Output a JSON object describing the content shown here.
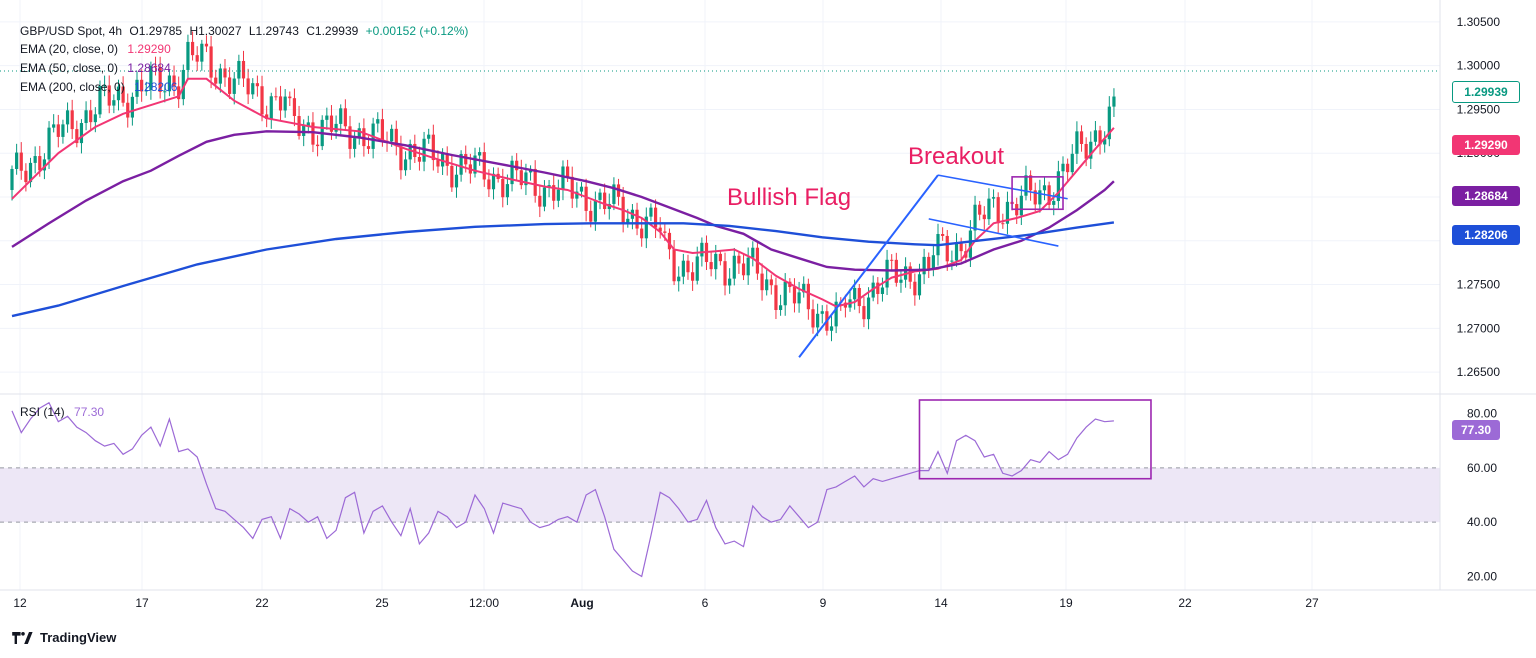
{
  "header": {
    "symbol": "GBP/USD Spot, 4h",
    "ohlc": {
      "open": "O1.29785",
      "high": "H1.30027",
      "low": "L1.29743",
      "close": "C1.29939",
      "change": "+0.00152 (+0.12%)"
    }
  },
  "legends": [
    {
      "label": "EMA (20, close, 0)",
      "value": "1.29290",
      "color": "#f23674"
    },
    {
      "label": "EMA (50, close, 0)",
      "value": "1.28684",
      "color": "#7b1fa2"
    },
    {
      "label": "EMA (200, close, 0)",
      "value": "1.28206",
      "color": "#1e4fd8"
    }
  ],
  "rsi_legend": {
    "label": "RSI (14)",
    "value": "77.30",
    "color": "#9c6ad6"
  },
  "price_tags": [
    {
      "value": "1.29939",
      "bg": "#ffffff",
      "fg": "#089981",
      "border": "#089981"
    },
    {
      "value": "1.29290",
      "bg": "#f23674",
      "fg": "#ffffff"
    },
    {
      "value": "1.28684",
      "bg": "#7b1fa2",
      "fg": "#ffffff"
    },
    {
      "value": "1.28206",
      "bg": "#1e4fd8",
      "fg": "#ffffff"
    }
  ],
  "rsi_tag": {
    "value": "77.30",
    "bg": "#9c6ad6"
  },
  "annotations": {
    "breakout": "Breakout",
    "flag": "Bullish Flag"
  },
  "footer": {
    "brand": "TradingView"
  },
  "colors": {
    "up": "#089981",
    "down": "#f23645",
    "grid": "#f0f3fa",
    "rsi_band": "#ede7f6"
  },
  "chart_data": {
    "type": "candlestick",
    "price_axis": {
      "ticks": [
        "1.30500",
        "1.30000",
        "1.29500",
        "1.29000",
        "1.28500",
        "1.28000",
        "1.27500",
        "1.27000",
        "1.26500"
      ],
      "ylim": [
        1.2625,
        1.3075
      ]
    },
    "rsi_axis": {
      "ticks": [
        "80.00",
        "60.00",
        "40.00",
        "20.00"
      ],
      "ylim": [
        15,
        85
      ],
      "band": [
        40,
        60
      ]
    },
    "x_ticks": [
      "12",
      "17",
      "22",
      "25",
      "12:00",
      "Aug",
      "6",
      "9",
      "14",
      "19",
      "22",
      "27"
    ],
    "series": [
      {
        "name": "EMA (20, close, 0)",
        "color": "#f23674",
        "points": [
          [
            0,
            1.2848
          ],
          [
            10,
            1.29
          ],
          [
            18,
            1.293
          ],
          [
            24,
            1.2945
          ],
          [
            30,
            1.2955
          ],
          [
            36,
            1.2965
          ],
          [
            38,
            1.2985
          ],
          [
            42,
            1.2985
          ],
          [
            48,
            1.296
          ],
          [
            55,
            1.294
          ],
          [
            65,
            1.293
          ],
          [
            75,
            1.2925
          ],
          [
            80,
            1.2915
          ],
          [
            85,
            1.2905
          ],
          [
            92,
            1.2893
          ],
          [
            100,
            1.288
          ],
          [
            108,
            1.287
          ],
          [
            115,
            1.2862
          ],
          [
            120,
            1.2858
          ],
          [
            124,
            1.285
          ],
          [
            128,
            1.2842
          ],
          [
            132,
            1.2835
          ],
          [
            136,
            1.2826
          ],
          [
            140,
            1.281
          ],
          [
            143,
            1.279
          ],
          [
            147,
            1.2786
          ],
          [
            152,
            1.2788
          ],
          [
            156,
            1.279
          ],
          [
            160,
            1.278
          ],
          [
            165,
            1.276
          ],
          [
            170,
            1.2745
          ],
          [
            175,
            1.2733
          ],
          [
            178,
            1.2725
          ],
          [
            182,
            1.273
          ],
          [
            186,
            1.2745
          ],
          [
            190,
            1.2758
          ],
          [
            195,
            1.2765
          ],
          [
            200,
            1.2768
          ],
          [
            205,
            1.2778
          ],
          [
            208,
            1.28
          ],
          [
            212,
            1.282
          ],
          [
            217,
            1.2826
          ],
          [
            222,
            1.2834
          ],
          [
            226,
            1.2855
          ],
          [
            230,
            1.288
          ],
          [
            234,
            1.2905
          ],
          [
            238,
            1.2929
          ]
        ]
      },
      {
        "name": "EMA (50, close, 0)",
        "color": "#7b1fa2",
        "points": [
          [
            0,
            1.2793
          ],
          [
            8,
            1.282
          ],
          [
            16,
            1.2846
          ],
          [
            24,
            1.2868
          ],
          [
            30,
            1.288
          ],
          [
            36,
            1.2897
          ],
          [
            42,
            1.2913
          ],
          [
            48,
            1.2921
          ],
          [
            55,
            1.2925
          ],
          [
            65,
            1.2924
          ],
          [
            75,
            1.2918
          ],
          [
            85,
            1.2909
          ],
          [
            95,
            1.2898
          ],
          [
            105,
            1.2888
          ],
          [
            115,
            1.2878
          ],
          [
            124,
            1.2868
          ],
          [
            130,
            1.286
          ],
          [
            136,
            1.285
          ],
          [
            142,
            1.2838
          ],
          [
            148,
            1.2826
          ],
          [
            152,
            1.2817
          ],
          [
            158,
            1.2808
          ],
          [
            164,
            1.279
          ],
          [
            170,
            1.278
          ],
          [
            176,
            1.277
          ],
          [
            182,
            1.2767
          ],
          [
            190,
            1.2766
          ],
          [
            198,
            1.2767
          ],
          [
            205,
            1.2774
          ],
          [
            212,
            1.279
          ],
          [
            218,
            1.28
          ],
          [
            224,
            1.2815
          ],
          [
            230,
            1.2835
          ],
          [
            236,
            1.2858
          ],
          [
            238,
            1.2868
          ]
        ]
      },
      {
        "name": "EMA (200, close, 0)",
        "color": "#1e4fd8",
        "points": [
          [
            0,
            1.2714
          ],
          [
            10,
            1.2726
          ],
          [
            25,
            1.275
          ],
          [
            40,
            1.2773
          ],
          [
            55,
            1.279
          ],
          [
            70,
            1.2802
          ],
          [
            85,
            1.281
          ],
          [
            100,
            1.2816
          ],
          [
            115,
            1.2819
          ],
          [
            125,
            1.282
          ],
          [
            135,
            1.282
          ],
          [
            145,
            1.282
          ],
          [
            155,
            1.2817
          ],
          [
            165,
            1.2811
          ],
          [
            175,
            1.2804
          ],
          [
            185,
            1.2799
          ],
          [
            195,
            1.2796
          ],
          [
            200,
            1.2795
          ],
          [
            210,
            1.2801
          ],
          [
            220,
            1.2807
          ],
          [
            230,
            1.2815
          ],
          [
            238,
            1.2821
          ]
        ]
      }
    ],
    "rsi": {
      "name": "RSI (14)",
      "color": "#9c6ad6",
      "values": [
        [
          0,
          81
        ],
        [
          2,
          73
        ],
        [
          4,
          78
        ],
        [
          6,
          82
        ],
        [
          8,
          84
        ],
        [
          10,
          77
        ],
        [
          12,
          79
        ],
        [
          14,
          75
        ],
        [
          16,
          73
        ],
        [
          18,
          70
        ],
        [
          20,
          68
        ],
        [
          22,
          69
        ],
        [
          24,
          65
        ],
        [
          26,
          67
        ],
        [
          28,
          72
        ],
        [
          30,
          75
        ],
        [
          32,
          68
        ],
        [
          34,
          78
        ],
        [
          36,
          66
        ],
        [
          38,
          67
        ],
        [
          40,
          64
        ],
        [
          42,
          54
        ],
        [
          44,
          45
        ],
        [
          46,
          44
        ],
        [
          48,
          41
        ],
        [
          50,
          38
        ],
        [
          52,
          34
        ],
        [
          54,
          41
        ],
        [
          56,
          42
        ],
        [
          58,
          34
        ],
        [
          60,
          45
        ],
        [
          62,
          43
        ],
        [
          64,
          40
        ],
        [
          66,
          42
        ],
        [
          68,
          34
        ],
        [
          70,
          37
        ],
        [
          72,
          49
        ],
        [
          74,
          51
        ],
        [
          76,
          36
        ],
        [
          78,
          44
        ],
        [
          80,
          46
        ],
        [
          82,
          40
        ],
        [
          84,
          35
        ],
        [
          86,
          45
        ],
        [
          88,
          32
        ],
        [
          90,
          36
        ],
        [
          92,
          44
        ],
        [
          94,
          42
        ],
        [
          96,
          38
        ],
        [
          98,
          40
        ],
        [
          100,
          50
        ],
        [
          102,
          45
        ],
        [
          104,
          36
        ],
        [
          106,
          47
        ],
        [
          108,
          46
        ],
        [
          110,
          45
        ],
        [
          112,
          40
        ],
        [
          114,
          38
        ],
        [
          116,
          39
        ],
        [
          118,
          41
        ],
        [
          120,
          42
        ],
        [
          122,
          40
        ],
        [
          124,
          50
        ],
        [
          126,
          52
        ],
        [
          128,
          42
        ],
        [
          130,
          30
        ],
        [
          132,
          26
        ],
        [
          134,
          22
        ],
        [
          136,
          20
        ],
        [
          138,
          35
        ],
        [
          140,
          51
        ],
        [
          142,
          49
        ],
        [
          144,
          45
        ],
        [
          146,
          40
        ],
        [
          148,
          41
        ],
        [
          150,
          48
        ],
        [
          152,
          38
        ],
        [
          154,
          32
        ],
        [
          156,
          33
        ],
        [
          158,
          31
        ],
        [
          160,
          46
        ],
        [
          162,
          42
        ],
        [
          164,
          40
        ],
        [
          166,
          41
        ],
        [
          168,
          46
        ],
        [
          170,
          42
        ],
        [
          172,
          38
        ],
        [
          174,
          40
        ],
        [
          176,
          52
        ],
        [
          178,
          53
        ],
        [
          180,
          55
        ],
        [
          182,
          57
        ],
        [
          184,
          53
        ],
        [
          186,
          56
        ],
        [
          188,
          55
        ],
        [
          190,
          56
        ],
        [
          192,
          57
        ],
        [
          194,
          58
        ],
        [
          196,
          59
        ],
        [
          198,
          59
        ],
        [
          200,
          66
        ],
        [
          202,
          58
        ],
        [
          204,
          70
        ],
        [
          206,
          72
        ],
        [
          208,
          70
        ],
        [
          210,
          64
        ],
        [
          212,
          65
        ],
        [
          214,
          58
        ],
        [
          216,
          57
        ],
        [
          218,
          59
        ],
        [
          220,
          63
        ],
        [
          222,
          62
        ],
        [
          224,
          66
        ],
        [
          226,
          63
        ],
        [
          228,
          65
        ],
        [
          230,
          71
        ],
        [
          232,
          75
        ],
        [
          234,
          78
        ],
        [
          236,
          77
        ],
        [
          238,
          77.3
        ]
      ]
    },
    "flag": {
      "pole": [
        [
          170,
          1.2667
        ],
        [
          200,
          1.2875
        ]
      ],
      "upper": [
        [
          200,
          1.2875
        ],
        [
          228,
          1.2848
        ]
      ],
      "lower": [
        [
          198,
          1.2825
        ],
        [
          226,
          1.2794
        ]
      ]
    },
    "boxes": [
      {
        "name": "breakout-box",
        "x": [
          216,
          227
        ],
        "y": [
          1.2836,
          1.2873
        ],
        "color": "#9c27b0"
      },
      {
        "name": "rsi-box",
        "x": [
          196,
          246
        ],
        "rsi": [
          56,
          85
        ],
        "color": "#9c27b0"
      }
    ]
  }
}
